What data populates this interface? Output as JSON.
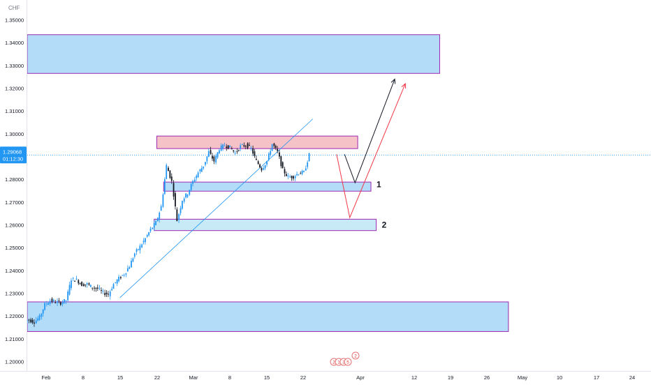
{
  "chart_data": {
    "type": "candlestick",
    "currency_label": "CHF",
    "last_price": "1.29068",
    "countdown": "01:12:30",
    "y_ticks": [
      "1.35000",
      "1.34000",
      "1.33000",
      "1.32000",
      "1.31000",
      "1.30000",
      "1.28000",
      "1.27000",
      "1.26000",
      "1.25000",
      "1.24000",
      "1.23000",
      "1.22000",
      "1.21000",
      "1.20000"
    ],
    "x_ticks": [
      "Feb",
      "8",
      "15",
      "22",
      "Mar",
      "8",
      "15",
      "22",
      "Apr",
      "12",
      "19",
      "26",
      "May",
      "10",
      "17",
      "24"
    ],
    "ylim": [
      1.1965,
      1.3565
    ],
    "zones": [
      {
        "kind": "resistance",
        "low": 1.3265,
        "high": 1.3435,
        "from_day": 0,
        "to_day": 78,
        "color": "#b3dcf9"
      },
      {
        "kind": "supply",
        "low": 1.2935,
        "high": 1.299,
        "from_day": 24.5,
        "to_day": 62.5,
        "color": "#f5c2c7"
      },
      {
        "kind": "support-1",
        "low": 1.2748,
        "high": 1.2788,
        "from_day": 25.8,
        "to_day": 65,
        "color": "#b3dcf9"
      },
      {
        "kind": "support-2",
        "low": 1.2575,
        "high": 1.2625,
        "from_day": 24,
        "to_day": 66,
        "color": "#c8eaf6"
      },
      {
        "kind": "demand",
        "low": 1.2132,
        "high": 1.2262,
        "from_day": 0,
        "to_day": 91,
        "color": "#b3dcf9"
      }
    ],
    "trendline": {
      "from": {
        "day": 17.5,
        "price": 1.228
      },
      "to": {
        "day": 54,
        "price": 1.3065
      }
    },
    "scenarios": [
      {
        "label": "1",
        "color": "#131722",
        "points": [
          {
            "day": 60,
            "price": 1.291
          },
          {
            "day": 62,
            "price": 1.2785
          },
          {
            "day": 69.5,
            "price": 1.324
          }
        ]
      },
      {
        "label": "2",
        "color": "#f23645",
        "points": [
          {
            "day": 58.5,
            "price": 1.291
          },
          {
            "day": 61,
            "price": 1.2632
          },
          {
            "day": 71.5,
            "price": 1.322
          }
        ]
      }
    ],
    "series": [
      {
        "day": 0,
        "close": 1.2182
      },
      {
        "day": 1,
        "close": 1.2175
      },
      {
        "day": 2,
        "close": 1.2195
      },
      {
        "day": 3,
        "close": 1.225
      },
      {
        "day": 4,
        "close": 1.2268
      },
      {
        "day": 5,
        "close": 1.2262
      },
      {
        "day": 6,
        "close": 1.2258
      },
      {
        "day": 7,
        "close": 1.227
      },
      {
        "day": 8,
        "close": 1.2362
      },
      {
        "day": 9,
        "close": 1.2358
      },
      {
        "day": 10,
        "close": 1.2338
      },
      {
        "day": 11,
        "close": 1.234
      },
      {
        "day": 12,
        "close": 1.2325
      },
      {
        "day": 13,
        "close": 1.232
      },
      {
        "day": 14,
        "close": 1.2302
      },
      {
        "day": 15,
        "close": 1.2295
      },
      {
        "day": 16,
        "close": 1.234
      },
      {
        "day": 17,
        "close": 1.2365
      },
      {
        "day": 18,
        "close": 1.2385
      },
      {
        "day": 19,
        "close": 1.242
      },
      {
        "day": 20,
        "close": 1.2475
      },
      {
        "day": 21,
        "close": 1.2505
      },
      {
        "day": 22,
        "close": 1.254
      },
      {
        "day": 23,
        "close": 1.258
      },
      {
        "day": 24,
        "close": 1.261
      },
      {
        "day": 25,
        "close": 1.268
      },
      {
        "day": 26,
        "close": 1.286
      },
      {
        "day": 27,
        "close": 1.279
      },
      {
        "day": 28,
        "close": 1.262
      },
      {
        "day": 29,
        "close": 1.271
      },
      {
        "day": 30,
        "close": 1.274
      },
      {
        "day": 31,
        "close": 1.279
      },
      {
        "day": 32,
        "close": 1.283
      },
      {
        "day": 33,
        "close": 1.286
      },
      {
        "day": 34,
        "close": 1.292
      },
      {
        "day": 35,
        "close": 1.288
      },
      {
        "day": 36,
        "close": 1.2935
      },
      {
        "day": 37,
        "close": 1.295
      },
      {
        "day": 38,
        "close": 1.294
      },
      {
        "day": 39,
        "close": 1.2915
      },
      {
        "day": 40,
        "close": 1.2945
      },
      {
        "day": 41,
        "close": 1.295
      },
      {
        "day": 42,
        "close": 1.2935
      },
      {
        "day": 43,
        "close": 1.288
      },
      {
        "day": 44,
        "close": 1.2845
      },
      {
        "day": 45,
        "close": 1.288
      },
      {
        "day": 46,
        "close": 1.2955
      },
      {
        "day": 47,
        "close": 1.292
      },
      {
        "day": 48,
        "close": 1.284
      },
      {
        "day": 49,
        "close": 1.281
      },
      {
        "day": 50,
        "close": 1.2812
      },
      {
        "day": 51,
        "close": 1.2828
      },
      {
        "day": 52,
        "close": 1.283
      },
      {
        "day": 53,
        "close": 1.2907
      }
    ],
    "annotations": [
      "1",
      "2"
    ],
    "event_markers": [
      "2",
      "1",
      "3",
      "5",
      "2"
    ]
  }
}
